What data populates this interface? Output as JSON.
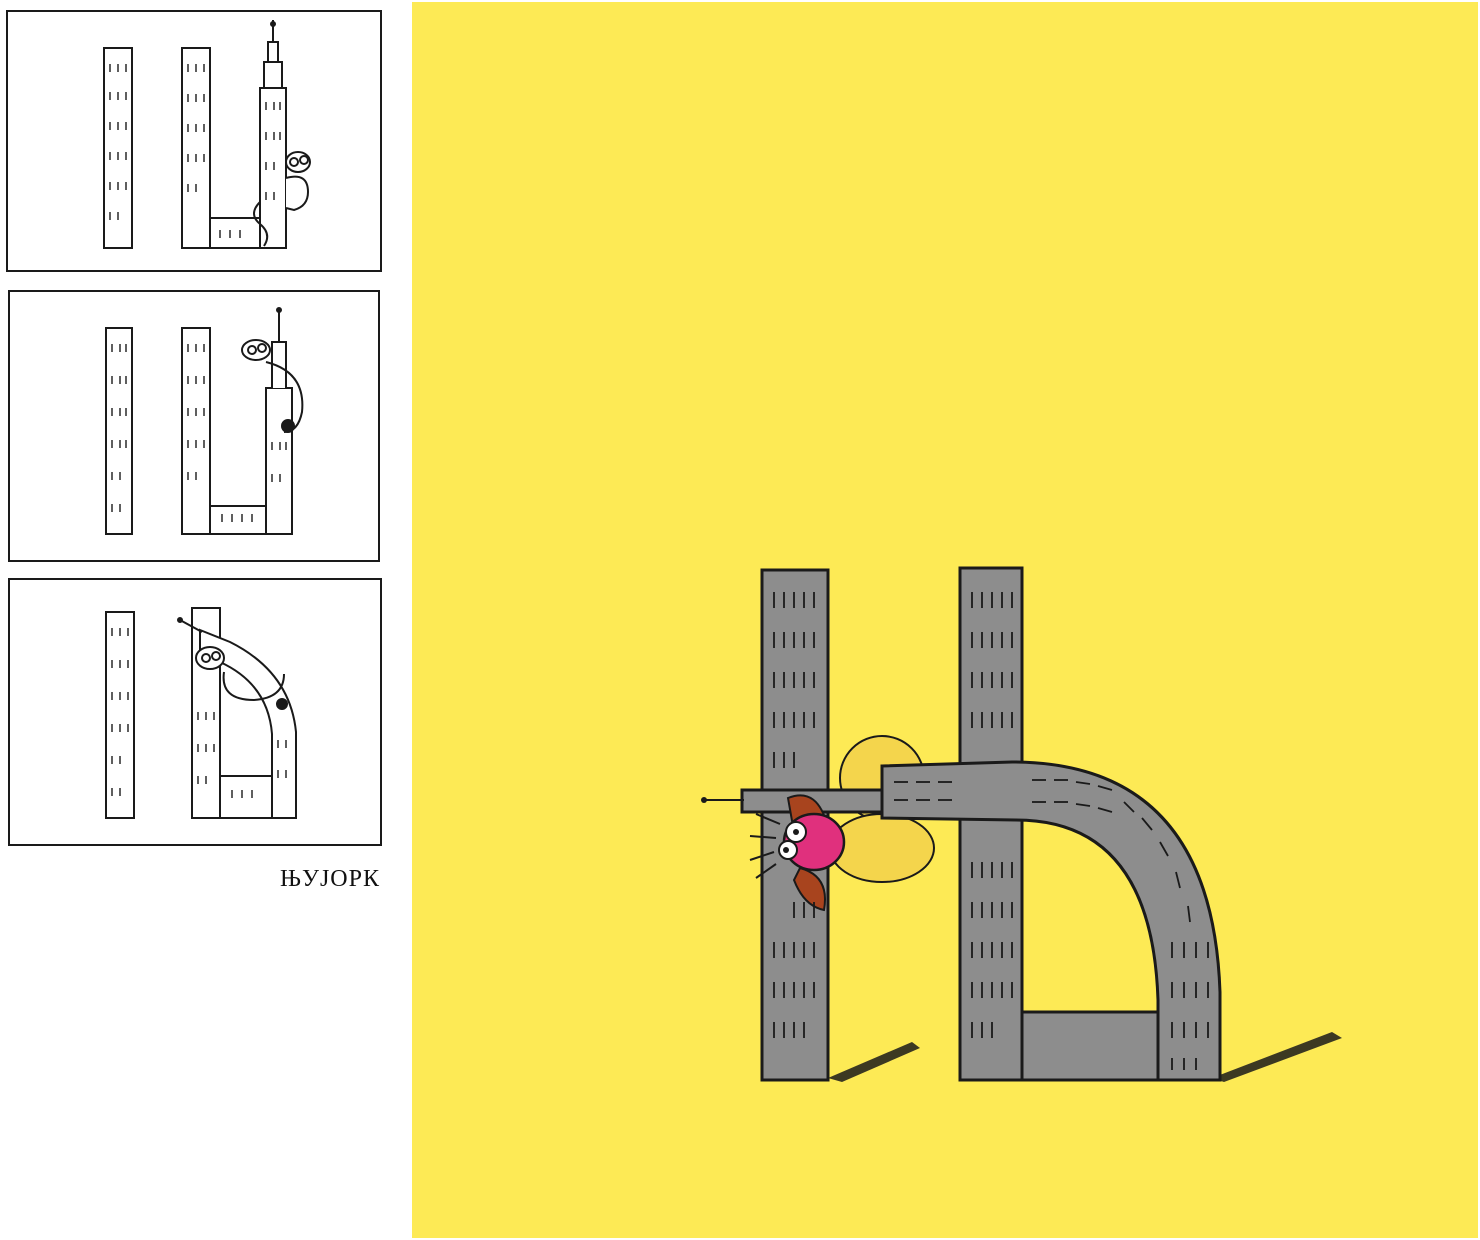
{
  "caption": "ЊУЈОРК",
  "colors": {
    "background_yellow": "#fdea55",
    "building_gray": "#8d8d8d",
    "ink": "#1a1a1a",
    "creature_pink": "#e0307d",
    "creature_brown": "#a8441e",
    "creature_yellow": "#f4d54c"
  }
}
